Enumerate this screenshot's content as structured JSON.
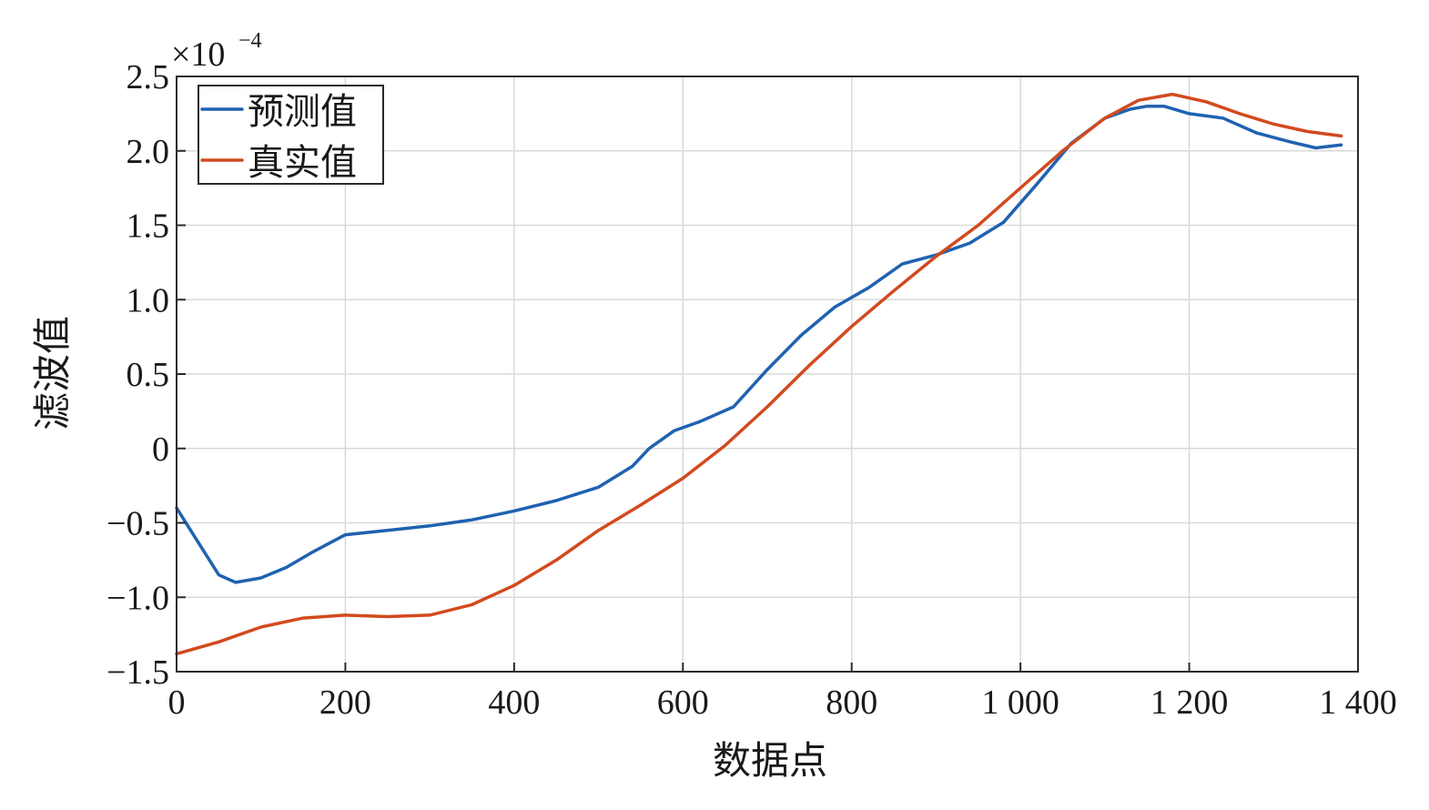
{
  "chart_data": {
    "type": "line",
    "xlabel": "数据点",
    "ylabel": "滤波值",
    "multiplier": {
      "base": "×10",
      "exponent": "−4"
    },
    "xlim": [
      0,
      1400
    ],
    "ylim": [
      -1.5,
      2.5
    ],
    "xticks": [
      {
        "value": 0,
        "label": "0"
      },
      {
        "value": 200,
        "label": "200"
      },
      {
        "value": 400,
        "label": "400"
      },
      {
        "value": 600,
        "label": "600"
      },
      {
        "value": 800,
        "label": "800"
      },
      {
        "value": 1000,
        "label": "1 000"
      },
      {
        "value": 1200,
        "label": "1 200"
      },
      {
        "value": 1400,
        "label": "1 400"
      }
    ],
    "yticks": [
      {
        "value": 2.5,
        "label": "2.5"
      },
      {
        "value": 2.0,
        "label": "2.0"
      },
      {
        "value": 1.5,
        "label": "1.5"
      },
      {
        "value": 1.0,
        "label": "1.0"
      },
      {
        "value": 0.5,
        "label": "0.5"
      },
      {
        "value": 0,
        "label": "0"
      },
      {
        "value": -0.5,
        "label": "−0.5"
      },
      {
        "value": -1.0,
        "label": "−1.0"
      },
      {
        "value": -1.5,
        "label": "−1.5"
      }
    ],
    "grid": true,
    "legend_position": "top-left",
    "series": [
      {
        "name": "预测值",
        "color": "#1f62b1",
        "points": [
          [
            0,
            -0.4
          ],
          [
            20,
            -0.58
          ],
          [
            50,
            -0.85
          ],
          [
            70,
            -0.9
          ],
          [
            100,
            -0.87
          ],
          [
            130,
            -0.8
          ],
          [
            160,
            -0.7
          ],
          [
            200,
            -0.58
          ],
          [
            250,
            -0.55
          ],
          [
            300,
            -0.52
          ],
          [
            350,
            -0.48
          ],
          [
            400,
            -0.42
          ],
          [
            450,
            -0.35
          ],
          [
            500,
            -0.26
          ],
          [
            540,
            -0.12
          ],
          [
            560,
            0.0
          ],
          [
            590,
            0.12
          ],
          [
            620,
            0.18
          ],
          [
            660,
            0.28
          ],
          [
            700,
            0.53
          ],
          [
            740,
            0.76
          ],
          [
            780,
            0.95
          ],
          [
            820,
            1.08
          ],
          [
            860,
            1.24
          ],
          [
            900,
            1.3
          ],
          [
            940,
            1.38
          ],
          [
            980,
            1.52
          ],
          [
            1020,
            1.78
          ],
          [
            1060,
            2.05
          ],
          [
            1100,
            2.22
          ],
          [
            1130,
            2.28
          ],
          [
            1150,
            2.3
          ],
          [
            1170,
            2.3
          ],
          [
            1200,
            2.25
          ],
          [
            1240,
            2.22
          ],
          [
            1280,
            2.12
          ],
          [
            1320,
            2.06
          ],
          [
            1350,
            2.02
          ],
          [
            1380,
            2.04
          ]
        ]
      },
      {
        "name": "真实值",
        "color": "#d24a1e",
        "points": [
          [
            0,
            -1.38
          ],
          [
            50,
            -1.3
          ],
          [
            100,
            -1.2
          ],
          [
            150,
            -1.14
          ],
          [
            200,
            -1.12
          ],
          [
            250,
            -1.13
          ],
          [
            300,
            -1.12
          ],
          [
            350,
            -1.05
          ],
          [
            400,
            -0.92
          ],
          [
            450,
            -0.75
          ],
          [
            500,
            -0.55
          ],
          [
            550,
            -0.38
          ],
          [
            600,
            -0.2
          ],
          [
            650,
            0.02
          ],
          [
            700,
            0.28
          ],
          [
            750,
            0.56
          ],
          [
            800,
            0.82
          ],
          [
            850,
            1.06
          ],
          [
            900,
            1.29
          ],
          [
            950,
            1.5
          ],
          [
            1000,
            1.75
          ],
          [
            1050,
            2.0
          ],
          [
            1100,
            2.22
          ],
          [
            1140,
            2.34
          ],
          [
            1180,
            2.38
          ],
          [
            1220,
            2.33
          ],
          [
            1260,
            2.25
          ],
          [
            1300,
            2.18
          ],
          [
            1340,
            2.13
          ],
          [
            1380,
            2.1
          ]
        ]
      }
    ]
  }
}
